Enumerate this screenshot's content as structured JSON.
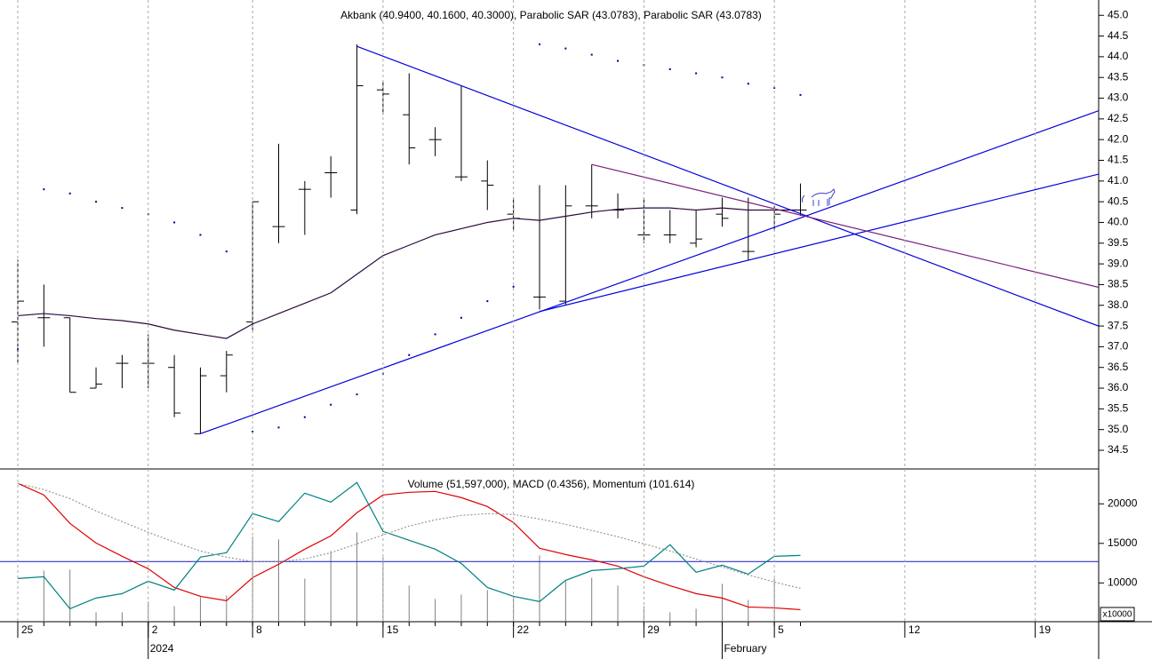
{
  "chart_data": [
    {
      "type": "ohlc",
      "title": "Akbank (40.9400, 40.1600, 40.3000), Parabolic SAR (43.0783), Parabolic SAR (43.0783)",
      "x": [
        "2023-12-25",
        "2023-12-26",
        "2023-12-27",
        "2023-12-28",
        "2023-12-29",
        "2024-01-02",
        "2024-01-03",
        "2024-01-04",
        "2024-01-05",
        "2024-01-08",
        "2024-01-09",
        "2024-01-10",
        "2024-01-11",
        "2024-01-12",
        "2024-01-15",
        "2024-01-16",
        "2024-01-17",
        "2024-01-18",
        "2024-01-19",
        "2024-01-22",
        "2024-01-23",
        "2024-01-24",
        "2024-01-25",
        "2024-01-26",
        "2024-01-29",
        "2024-01-30",
        "2024-01-31",
        "2024-02-01",
        "2024-02-02",
        "2024-02-05",
        "2024-02-06"
      ],
      "open": [
        37.6,
        37.7,
        37.7,
        36.0,
        36.6,
        36.6,
        36.5,
        34.9,
        36.3,
        37.6,
        39.9,
        40.8,
        41.2,
        40.3,
        43.2,
        42.6,
        42.0,
        41.1,
        41.0,
        40.2,
        38.2,
        38.1,
        40.4,
        40.3,
        39.7,
        39.7,
        39.5,
        40.2,
        39.3,
        40.3,
        40.3
      ],
      "high": [
        39.1,
        38.5,
        37.7,
        36.5,
        36.8,
        37.3,
        36.8,
        36.5,
        36.9,
        40.5,
        41.9,
        41.0,
        41.6,
        44.3,
        43.4,
        43.6,
        42.3,
        43.3,
        41.5,
        40.6,
        40.9,
        40.9,
        41.4,
        40.7,
        40.6,
        40.3,
        40.3,
        40.6,
        40.6,
        40.4,
        40.94
      ],
      "low": [
        36.6,
        37.0,
        35.9,
        36.0,
        36.0,
        36.0,
        35.3,
        34.9,
        35.9,
        37.4,
        39.5,
        39.7,
        40.6,
        40.2,
        42.6,
        41.4,
        41.6,
        41.0,
        40.3,
        39.8,
        37.9,
        38.0,
        40.1,
        40.1,
        39.5,
        39.5,
        39.4,
        39.9,
        39.1,
        39.8,
        40.16
      ],
      "close": [
        38.1,
        37.7,
        35.9,
        36.1,
        36.6,
        36.6,
        35.4,
        36.3,
        36.8,
        40.5,
        39.9,
        40.8,
        41.2,
        43.3,
        43.1,
        41.8,
        42.0,
        41.1,
        40.9,
        40.1,
        38.2,
        40.4,
        40.4,
        40.3,
        39.7,
        39.7,
        39.6,
        40.1,
        39.3,
        40.2,
        40.3
      ],
      "color": "#000000",
      "overlays": [
        {
          "type": "line",
          "color": "#2b0a3d",
          "values": [
            37.75,
            37.8,
            37.75,
            37.68,
            37.63,
            37.55,
            37.4,
            37.3,
            37.2,
            37.55,
            37.8,
            38.05,
            38.3,
            38.75,
            39.2,
            39.45,
            39.7,
            39.85,
            40.0,
            40.1,
            40.05,
            40.15,
            40.25,
            40.32,
            40.35,
            40.35,
            40.3,
            40.35,
            40.3,
            40.3,
            40.3
          ]
        },
        {
          "type": "dots",
          "color": "#00008b",
          "values": [
            36.95,
            40.8,
            40.7,
            40.5,
            40.35,
            40.2,
            40.0,
            39.7,
            39.3,
            34.95,
            35.05,
            35.3,
            35.6,
            35.85,
            36.35,
            36.8,
            37.3,
            37.7,
            38.1,
            38.45,
            44.3,
            44.2,
            44.05,
            43.9,
            43.8,
            43.7,
            43.6,
            43.5,
            43.35,
            43.25,
            43.0783
          ]
        }
      ],
      "trend_lines": [
        {
          "color": "#0000dd",
          "points": [
            {
              "x": "2024-01-12",
              "y": 44.25
            },
            {
              "x": "2024-02-21",
              "y": 37.6
            }
          ]
        },
        {
          "color": "#0000dd",
          "points": [
            {
              "x": "2024-01-04",
              "y": 34.9
            },
            {
              "x": "2024-02-21",
              "y": 42.6
            }
          ]
        },
        {
          "color": "#0000dd",
          "points": [
            {
              "x": "2024-01-23",
              "y": 37.85
            },
            {
              "x": "2024-02-21",
              "y": 41.1
            }
          ]
        },
        {
          "color": "#7a1f7a",
          "points": [
            {
              "x": "2024-01-25",
              "y": 41.4
            },
            {
              "x": "2024-02-21",
              "y": 38.5
            }
          ]
        }
      ],
      "ylim": [
        34.05,
        45.37
      ],
      "yticks": [
        {
          "value": 45,
          "label": "45.0"
        },
        44.5,
        {
          "value": 44,
          "label": "44.0"
        },
        43.5,
        {
          "value": 43,
          "label": "43.0"
        },
        42.5,
        {
          "value": 42,
          "label": "42.0"
        },
        41.5,
        {
          "value": 41,
          "label": "41.0"
        },
        40.5,
        {
          "value": 40,
          "label": "40.0"
        },
        39.5,
        {
          "value": 39,
          "label": "39.0"
        },
        38.5,
        {
          "value": 38,
          "label": "38.0"
        },
        37.5,
        {
          "value": 37,
          "label": "37.0"
        },
        36.5,
        {
          "value": 36,
          "label": "36.0"
        },
        35.5,
        {
          "value": 35,
          "label": "35.0"
        },
        34.5
      ],
      "xticks": [
        {
          "value": "2023-12-25",
          "label": "25"
        },
        {
          "value": "2024-01-02",
          "label": "2"
        },
        {
          "value": "2024-01-08",
          "label": "8"
        },
        {
          "value": "2024-01-15",
          "label": "15"
        },
        {
          "value": "2024-01-22",
          "label": "22"
        },
        {
          "value": "2024-01-29",
          "label": "29"
        },
        {
          "value": "2024-02-05",
          "label": "5"
        },
        {
          "value": "2024-02-12",
          "label": "12"
        },
        {
          "value": "2024-02-19",
          "label": "19"
        }
      ],
      "xticks_major": [
        {
          "value": "2024-01-02",
          "label": "2024"
        },
        {
          "value": "2024-02-01",
          "label": "February"
        }
      ],
      "grid": true
    },
    {
      "type": "volume",
      "title": "Volume (51,597,000), MACD (0.4356), Momentum (101.614)",
      "values": [
        5500,
        11570,
        11680,
        6290,
        6290,
        7640,
        7070,
        8200,
        8420,
        15840,
        15500,
        10560,
        14040,
        16400,
        13260,
        9660,
        7970,
        8530,
        9100,
        8310,
        13480,
        10220,
        10670,
        9660,
        7070,
        6290,
        6740,
        9880,
        7860,
        10560,
        5159.7
      ],
      "color": "#808080",
      "overlays": [
        {
          "type": "line",
          "color": "#e00000",
          "values": [
            22590,
            21120,
            17530,
            15050,
            13370,
            11790,
            9430,
            8310,
            7750,
            10670,
            12360,
            14270,
            15950,
            18880,
            21120,
            21460,
            21570,
            20790,
            19660,
            17640,
            14380,
            13590,
            12920,
            12130,
            10780,
            9660,
            8650,
            8090,
            6960,
            6850,
            6620
          ]
        },
        {
          "type": "line",
          "color": "#008080",
          "values": [
            10560,
            10780,
            6740,
            8090,
            8650,
            10220,
            9100,
            13260,
            13820,
            18760,
            17750,
            21350,
            20220,
            22700,
            16520,
            15390,
            14270,
            12470,
            9430,
            8310,
            7640,
            10330,
            11570,
            11790,
            12130,
            14830,
            11350,
            12240,
            11120,
            13370,
            13480
          ]
        },
        {
          "type": "line",
          "color": "#999999",
          "dash": true,
          "values": [
            22590,
            21800,
            20670,
            19100,
            17750,
            16400,
            15170,
            14040,
            13260,
            12700,
            12700,
            13030,
            13820,
            14940,
            16070,
            17190,
            17980,
            18540,
            18760,
            18650,
            18090,
            17410,
            16630,
            15840,
            14940,
            14040,
            13030,
            12020,
            11010,
            10110,
            9320
          ]
        }
      ],
      "hline": {
        "value": 12700,
        "color": "#3333cc"
      },
      "ylim": [
        5100,
        24300
      ],
      "yticks": [
        20000,
        15000,
        10000
      ],
      "axis_multiplier": "x10000"
    }
  ]
}
